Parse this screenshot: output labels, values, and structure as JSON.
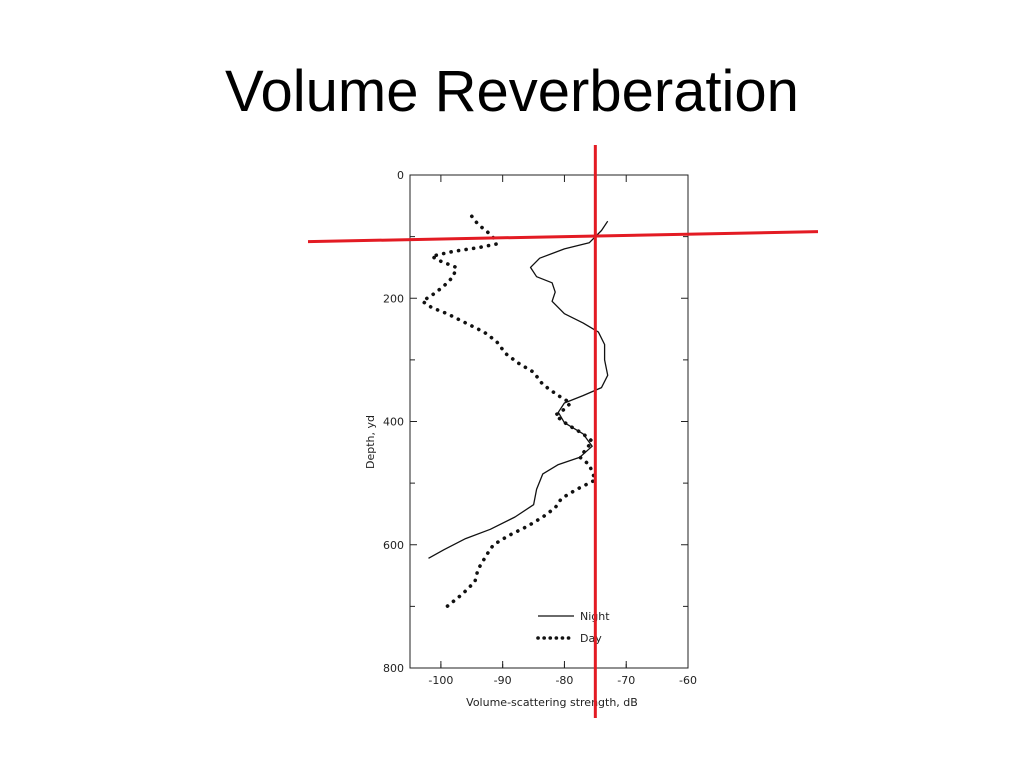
{
  "slide": {
    "title": "Volume Reverberation"
  },
  "chart_data": {
    "type": "line",
    "xlabel": "Volume-scattering strength, dB",
    "ylabel": "Depth, yd",
    "xlim": [
      -105,
      -60
    ],
    "ylim": [
      0,
      800
    ],
    "y_inverted": true,
    "x_ticks": [
      -100,
      -90,
      -80,
      -70,
      -60
    ],
    "y_ticks": [
      0,
      200,
      400,
      600,
      800
    ],
    "grid": false,
    "legend_position": "bottom-right",
    "series": [
      {
        "name": "Night",
        "style": "solid",
        "points": [
          [
            -73,
            75
          ],
          [
            -74,
            90
          ],
          [
            -76,
            110
          ],
          [
            -80,
            120
          ],
          [
            -84,
            135
          ],
          [
            -85.5,
            150
          ],
          [
            -84.5,
            165
          ],
          [
            -82,
            175
          ],
          [
            -81.5,
            190
          ],
          [
            -82,
            205
          ],
          [
            -80,
            225
          ],
          [
            -77,
            240
          ],
          [
            -74.5,
            255
          ],
          [
            -73.5,
            275
          ],
          [
            -73.5,
            300
          ],
          [
            -73,
            325
          ],
          [
            -74,
            345
          ],
          [
            -77,
            358
          ],
          [
            -80,
            370
          ],
          [
            -81,
            385
          ],
          [
            -80,
            402
          ],
          [
            -77,
            420
          ],
          [
            -75.5,
            440
          ],
          [
            -77.5,
            458
          ],
          [
            -81,
            470
          ],
          [
            -83.5,
            485
          ],
          [
            -84.5,
            510
          ],
          [
            -85,
            535
          ],
          [
            -88,
            555
          ],
          [
            -92,
            575
          ],
          [
            -96,
            590
          ],
          [
            -99.5,
            608
          ],
          [
            -102,
            622
          ]
        ]
      },
      {
        "name": "Day",
        "style": "dotted",
        "points": [
          [
            -95,
            67
          ],
          [
            -94,
            80
          ],
          [
            -92.5,
            92
          ],
          [
            -91.5,
            102
          ],
          [
            -91,
            112
          ],
          [
            -94,
            118
          ],
          [
            -98,
            124
          ],
          [
            -101.5,
            132
          ],
          [
            -100,
            140
          ],
          [
            -97.5,
            150
          ],
          [
            -98,
            165
          ],
          [
            -99.5,
            180
          ],
          [
            -101,
            192
          ],
          [
            -103,
            205
          ],
          [
            -101.5,
            215
          ],
          [
            -99,
            225
          ],
          [
            -96,
            240
          ],
          [
            -93,
            255
          ],
          [
            -91,
            270
          ],
          [
            -89.5,
            290
          ],
          [
            -87.5,
            305
          ],
          [
            -85,
            320
          ],
          [
            -83.5,
            340
          ],
          [
            -81,
            358
          ],
          [
            -79,
            370
          ],
          [
            -80,
            380
          ],
          [
            -81.5,
            390
          ],
          [
            -79.5,
            405
          ],
          [
            -77,
            420
          ],
          [
            -75.5,
            432
          ],
          [
            -76.5,
            445
          ],
          [
            -77.5,
            458
          ],
          [
            -76,
            470
          ],
          [
            -75.5,
            482
          ],
          [
            -75,
            495
          ],
          [
            -78,
            510
          ],
          [
            -80.5,
            525
          ],
          [
            -81.5,
            540
          ],
          [
            -83.5,
            555
          ],
          [
            -86,
            570
          ],
          [
            -89,
            585
          ],
          [
            -91.5,
            600
          ],
          [
            -92.5,
            615
          ],
          [
            -94,
            640
          ],
          [
            -94.5,
            660
          ],
          [
            -96.5,
            680
          ],
          [
            -99,
            700
          ]
        ]
      }
    ],
    "annotations": {
      "vertical_line_x": -75,
      "horizontal_line_y": 100,
      "line_color": "#e31b23"
    }
  }
}
